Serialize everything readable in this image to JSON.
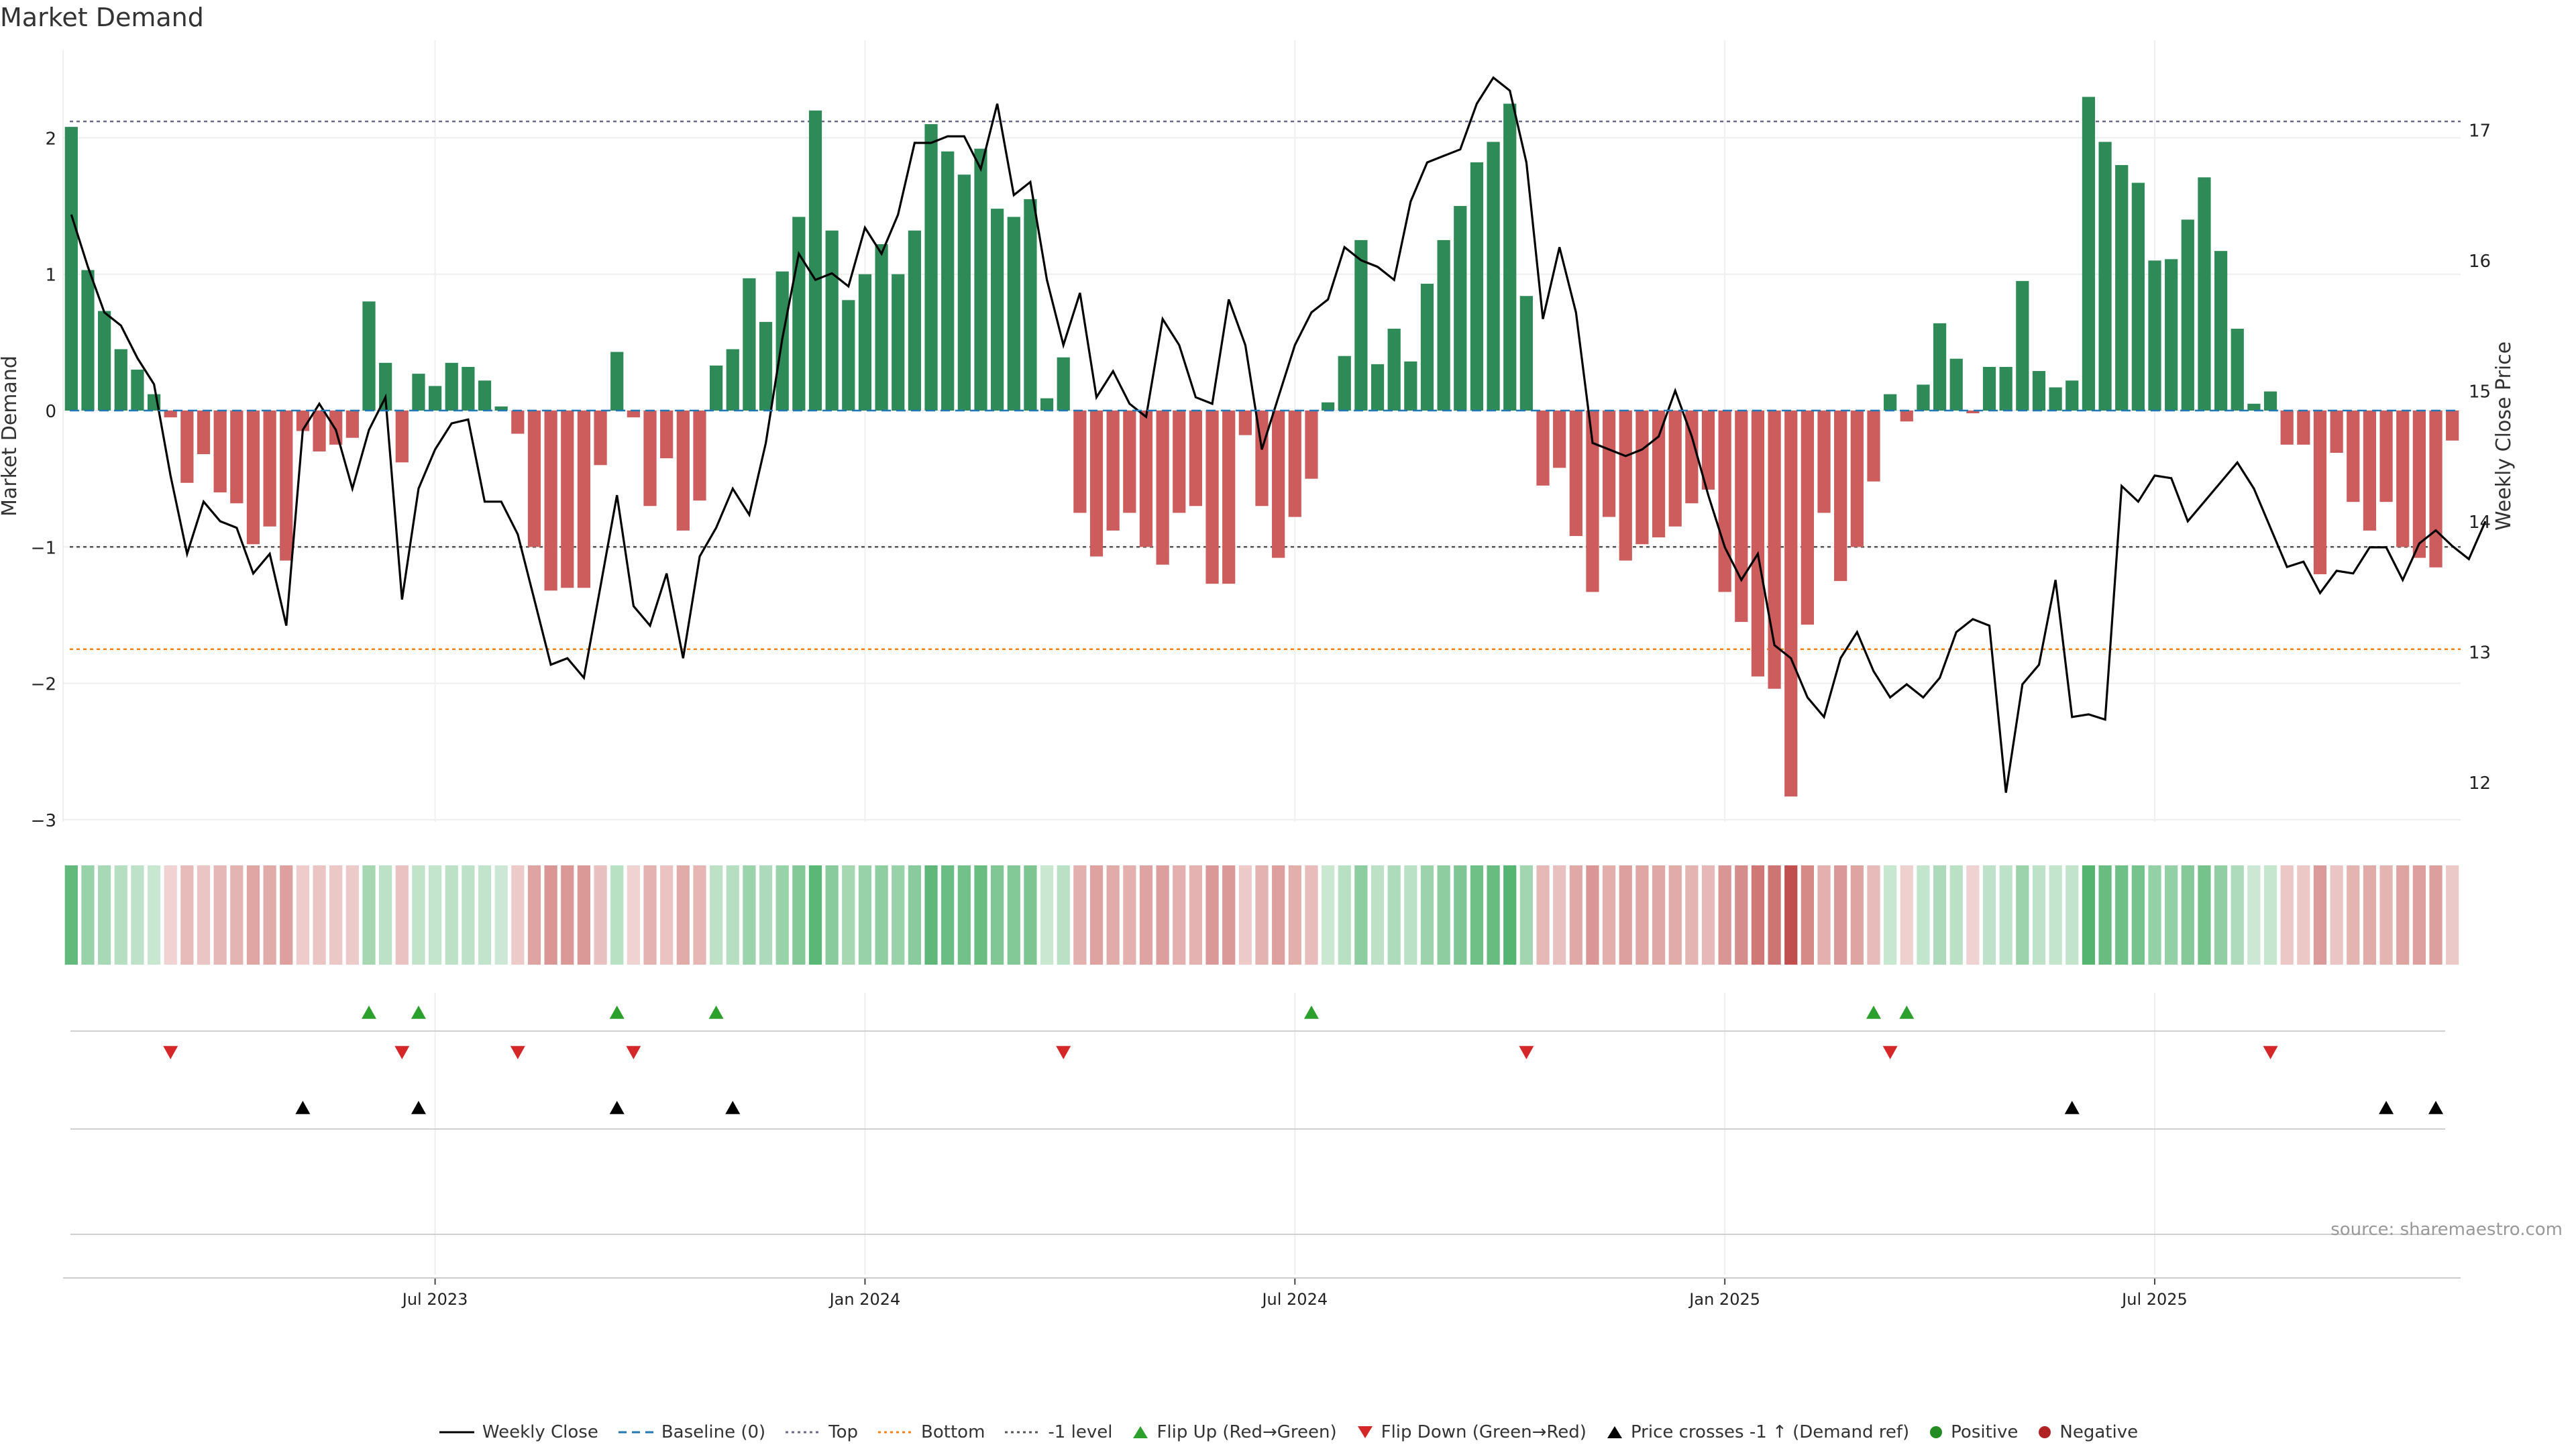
{
  "page": {
    "title": "Market Demand",
    "source": "source: sharemaestro.com"
  },
  "colors": {
    "pos": "#2e8b57",
    "neg": "#cd5c5c",
    "price": "#000000",
    "baseline": "#1f77b4",
    "top": "#6a6a8a",
    "bottom": "#ff7f0e",
    "minus1": "#555555",
    "flip_up": "#2ca02c",
    "flip_down": "#d62728",
    "cross": "#000000",
    "positive_dot": "#228b22",
    "negative_dot": "#b22222"
  },
  "chart_data": {
    "type": "bar",
    "title": "Market Demand",
    "ylabel": "Market Demand",
    "y2label": "Weekly Close Price",
    "ylim": [
      -3.0,
      2.6
    ],
    "y2lim": [
      11.7,
      17.6
    ],
    "yticks": [
      -3,
      -2,
      -1,
      0,
      1,
      2
    ],
    "ytick_labels": [
      "−3",
      "−2",
      "−1",
      "0",
      "1",
      "2"
    ],
    "y2ticks": [
      12,
      13,
      14,
      15,
      16,
      17
    ],
    "xticks": [
      22.5,
      48.5,
      74.5,
      100.5,
      126.5
    ],
    "xtick_labels": [
      "Jul 2023",
      "Jan 2024",
      "Jul 2024",
      "Jan 2025",
      "Jul 2025"
    ],
    "reference_lines": {
      "top": 2.12,
      "bottom": -1.75,
      "minus1": -1.0,
      "baseline": 0
    },
    "demand": [
      2.08,
      1.03,
      0.73,
      0.45,
      0.3,
      0.12,
      -0.05,
      -0.53,
      -0.32,
      -0.6,
      -0.68,
      -0.98,
      -0.85,
      -1.1,
      -0.15,
      -0.3,
      -0.25,
      -0.2,
      0.8,
      0.35,
      -0.38,
      0.27,
      0.18,
      0.35,
      0.32,
      0.22,
      0.03,
      -0.17,
      -1.0,
      -1.32,
      -1.3,
      -1.3,
      -0.4,
      0.43,
      -0.05,
      -0.7,
      -0.35,
      -0.88,
      -0.66,
      0.33,
      0.45,
      0.97,
      0.65,
      1.02,
      1.42,
      2.2,
      1.32,
      0.81,
      1.0,
      1.22,
      1.0,
      1.32,
      2.1,
      1.9,
      1.73,
      1.92,
      1.48,
      1.42,
      1.55,
      0.09,
      0.39,
      -0.75,
      -1.07,
      -0.88,
      -0.75,
      -1.0,
      -1.13,
      -0.75,
      -0.7,
      -1.27,
      -1.27,
      -0.18,
      -0.7,
      -1.08,
      -0.78,
      -0.5,
      0.06,
      0.4,
      1.25,
      0.34,
      0.6,
      0.36,
      0.93,
      1.25,
      1.5,
      1.82,
      1.97,
      2.25,
      0.84,
      -0.55,
      -0.42,
      -0.92,
      -1.33,
      -0.78,
      -1.1,
      -0.98,
      -0.93,
      -0.85,
      -0.68,
      -0.58,
      -1.33,
      -1.55,
      -1.95,
      -2.04,
      -2.83,
      -1.57,
      -0.75,
      -1.25,
      -1.0,
      -0.52,
      0.12,
      -0.08,
      0.19,
      0.64,
      0.38,
      -0.02,
      0.32,
      0.32,
      0.95,
      0.29,
      0.17,
      0.22,
      2.3,
      1.97,
      1.8,
      1.67,
      1.1,
      1.11,
      1.4,
      1.71,
      1.17,
      0.6,
      0.05,
      0.14,
      -0.25,
      -0.25,
      -1.2,
      -0.31,
      -0.67,
      -0.88,
      -0.67,
      -1.0,
      -1.08,
      -1.15,
      -0.22
    ],
    "price": [
      16.35,
      15.95,
      15.6,
      15.5,
      15.25,
      15.05,
      14.35,
      13.75,
      14.15,
      14.0,
      13.95,
      13.6,
      13.75,
      13.2,
      14.7,
      14.9,
      14.7,
      14.25,
      14.7,
      14.95,
      13.4,
      14.25,
      14.55,
      14.75,
      14.78,
      14.15,
      14.15,
      13.9,
      13.4,
      12.9,
      12.95,
      12.8,
      13.5,
      14.2,
      13.35,
      13.2,
      13.6,
      12.95,
      13.73,
      13.95,
      14.25,
      14.05,
      14.6,
      15.4,
      16.05,
      15.85,
      15.9,
      15.8,
      16.25,
      16.05,
      16.35,
      16.9,
      16.9,
      16.95,
      16.95,
      16.7,
      17.2,
      16.5,
      16.6,
      15.85,
      15.35,
      15.75,
      14.95,
      15.15,
      14.9,
      14.8,
      15.55,
      15.35,
      14.95,
      14.9,
      15.7,
      15.35,
      14.55,
      14.95,
      15.35,
      15.6,
      15.7,
      16.1,
      16.0,
      15.95,
      15.85,
      16.45,
      16.75,
      16.8,
      16.85,
      17.2,
      17.4,
      17.3,
      16.75,
      15.55,
      16.1,
      15.6,
      14.6,
      14.55,
      14.5,
      14.55,
      14.65,
      15.0,
      14.65,
      14.2,
      13.8,
      13.55,
      13.75,
      13.05,
      12.95,
      12.65,
      12.5,
      12.95,
      13.15,
      12.85,
      12.65,
      12.75,
      12.65,
      12.8,
      13.15,
      13.25,
      13.2,
      11.92,
      12.75,
      12.9,
      13.55,
      12.5,
      12.52,
      12.48,
      14.27,
      14.15,
      14.35,
      14.33,
      14.0,
      14.15,
      14.3,
      14.45,
      14.25,
      13.95,
      13.65,
      13.69,
      13.45,
      13.62,
      13.6,
      13.8,
      13.8,
      13.55,
      13.83,
      13.93,
      13.81,
      13.71,
      14.0
    ],
    "flip_up": [
      18,
      21,
      33,
      39,
      75,
      109,
      111
    ],
    "flip_down": [
      6,
      20,
      27,
      34,
      60,
      88,
      110,
      133
    ],
    "price_cross": [
      14,
      21,
      33,
      40,
      121,
      140,
      143
    ],
    "legend": [
      "Weekly Close",
      "Baseline (0)",
      "Top",
      "Bottom",
      "-1 level",
      "Flip Up (Red→Green)",
      "Flip Down (Green→Red)",
      "Price crosses -1 ↑ (Demand ref)",
      "Positive",
      "Negative"
    ]
  }
}
